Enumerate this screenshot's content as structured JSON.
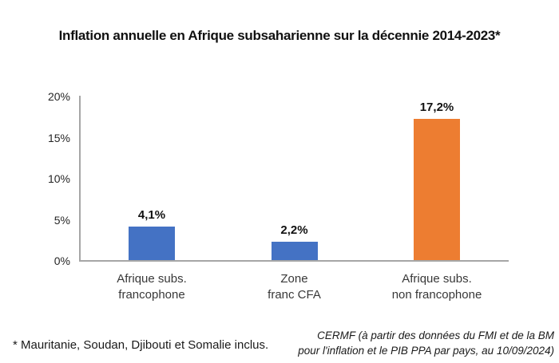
{
  "title": "Inflation annuelle en Afrique subsaharienne sur la décennie 2014-2023*",
  "chart_data": {
    "type": "bar",
    "title": "Inflation annuelle en Afrique subsaharienne sur la décennie 2014-2023*",
    "categories": [
      [
        "Afrique subs.",
        "francophone"
      ],
      [
        "Zone",
        "franc CFA"
      ],
      [
        "Afrique subs.",
        "non francophone"
      ]
    ],
    "values": [
      4.1,
      2.2,
      17.2
    ],
    "value_labels": [
      "4,1%",
      "2,2%",
      "17,2%"
    ],
    "bar_colors": [
      "#4472C4",
      "#4472C4",
      "#ED7D31"
    ],
    "xlabel": "",
    "ylabel": "",
    "ylim": [
      0,
      20
    ],
    "yticks": {
      "values": [
        0,
        5,
        10,
        15,
        20
      ],
      "labels": [
        "0%",
        "5%",
        "10%",
        "15%",
        "20%"
      ]
    },
    "grid": false,
    "legend_position": "none"
  },
  "footnotes": {
    "left": "* Mauritanie, Soudan, Djibouti et Somalie inclus.",
    "right": [
      "CERMF (à partir des données du FMI et de la BM",
      "pour l'inflation et le PIB PPA par pays, au 10/09/2024)"
    ]
  },
  "colors": {
    "axis": "#A6A6A6",
    "bar_blue": "#4472C4",
    "bar_orange": "#ED7D31",
    "text": "#1A1A1A",
    "background": "#FFFFFF"
  }
}
